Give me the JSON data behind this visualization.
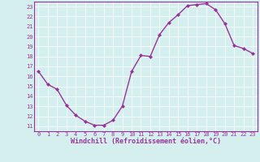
{
  "x": [
    0,
    1,
    2,
    3,
    4,
    5,
    6,
    7,
    8,
    9,
    10,
    11,
    12,
    13,
    14,
    15,
    16,
    17,
    18,
    19,
    20,
    21,
    22,
    23
  ],
  "y": [
    16.5,
    15.2,
    14.7,
    13.1,
    12.1,
    11.5,
    11.1,
    11.1,
    11.6,
    13.0,
    16.5,
    18.1,
    18.0,
    20.2,
    21.4,
    22.2,
    23.1,
    23.2,
    23.3,
    22.7,
    21.3,
    19.1,
    18.8,
    18.3
  ],
  "line_color": "#993399",
  "marker": "D",
  "marker_size": 2.0,
  "bg_color": "#d5efef",
  "grid_color": "#ffffff",
  "xlabel": "Windchill (Refroidissement éolien,°C)",
  "xlabel_color": "#993399",
  "tick_color": "#993399",
  "ylim_min": 10.5,
  "ylim_max": 23.5,
  "yticks": [
    11,
    12,
    13,
    14,
    15,
    16,
    17,
    18,
    19,
    20,
    21,
    22,
    23
  ],
  "xticks": [
    0,
    1,
    2,
    3,
    4,
    5,
    6,
    7,
    8,
    9,
    10,
    11,
    12,
    13,
    14,
    15,
    16,
    17,
    18,
    19,
    20,
    21,
    22,
    23
  ],
  "spine_color": "#993399",
  "line_width": 1.0,
  "grid_linewidth": 0.5,
  "tick_fontsize": 5.0,
  "xlabel_fontsize": 6.0
}
